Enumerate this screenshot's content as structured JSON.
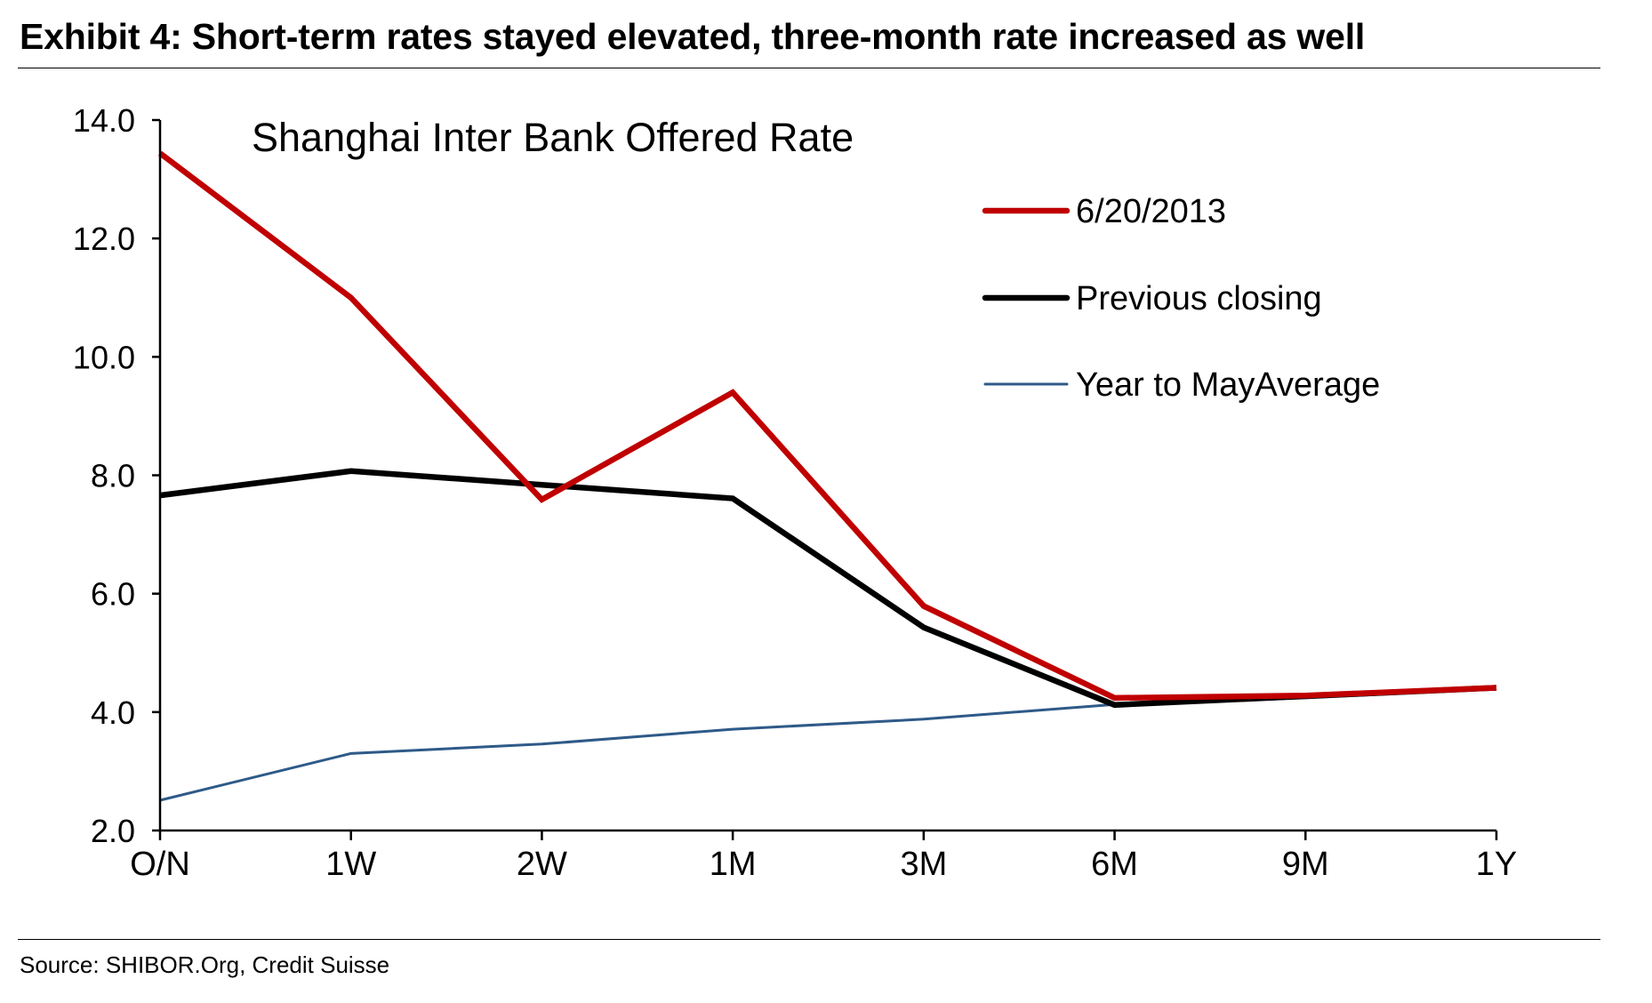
{
  "header": {
    "exhibit_title": "Exhibit 4: Short-term rates stayed elevated, three-month rate increased as well"
  },
  "footer": {
    "source": "Source: SHIBOR.Org, Credit Suisse"
  },
  "chart_data": {
    "type": "line",
    "title": "Shanghai Inter Bank Offered Rate",
    "xlabel": "",
    "ylabel": "",
    "categories": [
      "O/N",
      "1W",
      "2W",
      "1M",
      "3M",
      "6M",
      "9M",
      "1Y"
    ],
    "yticks": [
      "2.0",
      "4.0",
      "6.0",
      "8.0",
      "10.0",
      "12.0",
      "14.0"
    ],
    "ylim": [
      2.0,
      14.0
    ],
    "grid": false,
    "legend_position": "top-right",
    "series": [
      {
        "name": "6/20/2013",
        "color": "#C00000",
        "values": [
          13.44,
          11.0,
          7.59,
          9.4,
          5.79,
          4.24,
          4.28,
          4.41
        ]
      },
      {
        "name": "Previous closing",
        "color": "#000000",
        "values": [
          7.66,
          8.07,
          7.84,
          7.61,
          5.43,
          4.12,
          4.27,
          4.41
        ]
      },
      {
        "name": "Year to MayAverage",
        "color": "#2E5A88",
        "values": [
          2.51,
          3.3,
          3.46,
          3.71,
          3.88,
          4.13,
          4.24,
          4.39
        ]
      }
    ]
  }
}
